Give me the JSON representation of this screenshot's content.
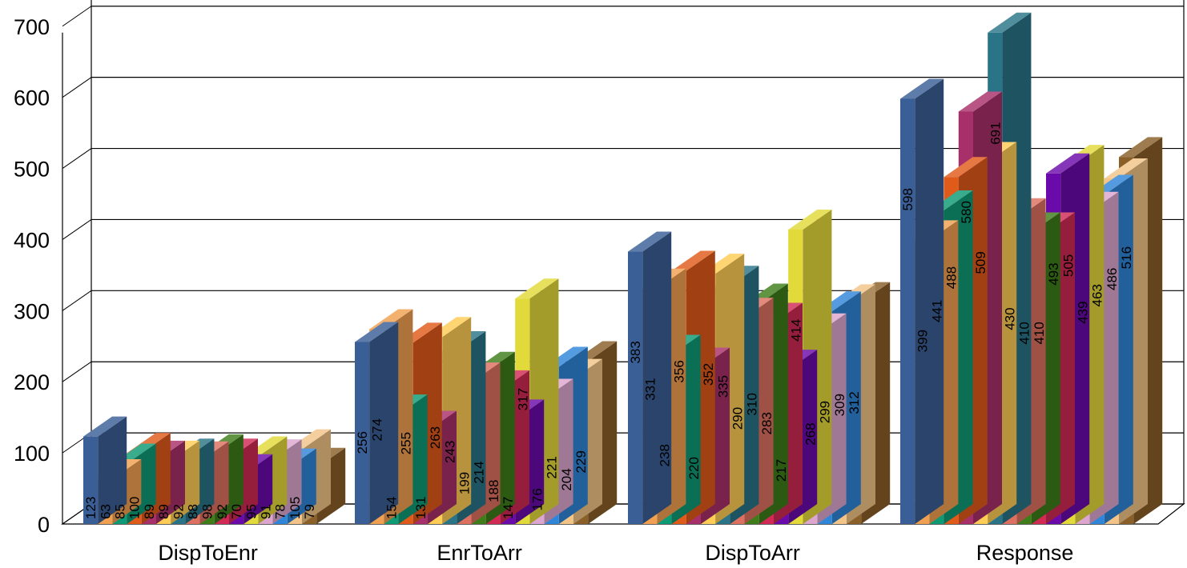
{
  "chart_data": {
    "type": "bar",
    "style": "3d-clustered-column",
    "title": "",
    "xlabel": "",
    "ylabel": "",
    "ylim": [
      0,
      700
    ],
    "yticks": [
      "0",
      "100",
      "200",
      "300",
      "400",
      "500",
      "600",
      "700"
    ],
    "grid": true,
    "legend": "none",
    "categories": [
      "DispToEnr",
      "EnrToArr",
      "DispToArr",
      "Response"
    ],
    "series": [
      {
        "color": "#3A5F96",
        "values": [
          123,
          256,
          383,
          598
        ]
      },
      {
        "color": "#F0A050",
        "values": [
          63,
          274,
          331,
          399
        ]
      },
      {
        "color": "#0E9A74",
        "values": [
          85,
          154,
          238,
          441
        ]
      },
      {
        "color": "#E05A1A",
        "values": [
          100,
          255,
          356,
          488
        ]
      },
      {
        "color": "#A8306A",
        "values": [
          89,
          131,
          220,
          580
        ]
      },
      {
        "color": "#FFCC55",
        "values": [
          89,
          263,
          352,
          509
        ]
      },
      {
        "color": "#2A7488",
        "values": [
          92,
          243,
          335,
          691
        ]
      },
      {
        "color": "#DD7060",
        "values": [
          88,
          199,
          290,
          430
        ]
      },
      {
        "color": "#3E7D1A",
        "values": [
          98,
          214,
          310,
          410
        ]
      },
      {
        "color": "#D02A55",
        "values": [
          92,
          188,
          283,
          410
        ]
      },
      {
        "color": "#6A0AAA",
        "values": [
          70,
          147,
          217,
          493
        ]
      },
      {
        "color": "#E2D93A",
        "values": [
          95,
          317,
          414,
          505
        ]
      },
      {
        "color": "#DDA6CF",
        "values": [
          91,
          176,
          268,
          439
        ]
      },
      {
        "color": "#2F86D8",
        "values": [
          78,
          221,
          299,
          463
        ]
      },
      {
        "color": "#F2C487",
        "values": [
          105,
          204,
          309,
          486
        ]
      },
      {
        "color": "#8A5F28",
        "values": [
          79,
          229,
          312,
          516
        ]
      }
    ]
  }
}
